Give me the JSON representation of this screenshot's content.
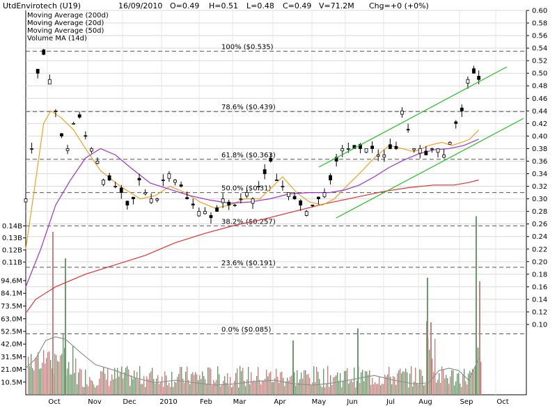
{
  "header": {
    "name": "UtdEnvirotech (U19)",
    "date": "16/09/2010",
    "open": "O=0.49",
    "high": "H=0.51",
    "low": "L=0.48",
    "close": "C=0.49",
    "volume": "V=71.2M",
    "change": "Chg=+0 (+0%)"
  },
  "legend": [
    {
      "label": "Moving Average (200d)",
      "color": "#e03030"
    },
    {
      "label": "Moving Average (20d)",
      "color": "#f0a020"
    },
    {
      "label": "Moving Average (50d)",
      "color": "#9b30d0"
    },
    {
      "label": "Volume MA (14d)",
      "color": "#808080"
    }
  ],
  "chart_data": {
    "type": "line",
    "subtype": "candlestick-with-volume",
    "price_axis": {
      "side": "right",
      "ylim": [
        0.09,
        0.6
      ],
      "ticks": [
        "0.60",
        "0.58",
        "0.56",
        "0.54",
        "0.52",
        "0.50",
        "0.48",
        "0.46",
        "0.44",
        "0.42",
        "0.40",
        "0.38",
        "0.36",
        "0.34",
        "0.32",
        "0.30",
        "0.28",
        "0.26",
        "0.24",
        "0.22",
        "0.20",
        "0.18",
        "0.16",
        "0.14",
        "0.12",
        "0.10"
      ]
    },
    "volume_axis": {
      "side": "left",
      "ylim": [
        0,
        150000000
      ],
      "ticks": [
        {
          "label": "0.14B",
          "value": 140000000
        },
        {
          "label": "0.13B",
          "value": 130000000
        },
        {
          "label": "0.12B",
          "value": 120000000
        },
        {
          "label": "0.11B",
          "value": 110000000
        },
        {
          "label": "94.6M",
          "value": 94600000
        },
        {
          "label": "84.1M",
          "value": 84100000
        },
        {
          "label": "73.5M",
          "value": 73500000
        },
        {
          "label": "63.0M",
          "value": 63000000
        },
        {
          "label": "52.5M",
          "value": 52500000
        },
        {
          "label": "42.0M",
          "value": 42000000
        },
        {
          "label": "31.5M",
          "value": 31500000
        },
        {
          "label": "21.0M",
          "value": 21000000
        },
        {
          "label": "10.5M",
          "value": 10500000
        }
      ]
    },
    "x_labels": [
      "Oct",
      "Nov",
      "Dec",
      "2010",
      "Feb",
      "Mar",
      "Apr",
      "May",
      "Jun",
      "Jul",
      "Aug",
      "Sep",
      "Oct"
    ],
    "fib_levels": [
      {
        "label": "100%   ($0.535)",
        "value": 0.535
      },
      {
        "label": "78.6%   ($0.439)",
        "value": 0.439
      },
      {
        "label": "61.8%   ($0.363)",
        "value": 0.363
      },
      {
        "label": "50.0%   ($0.31)",
        "value": 0.31
      },
      {
        "label": "38.2%   ($0.257)",
        "value": 0.257
      },
      {
        "label": "23.6%   ($0.191)",
        "value": 0.191
      },
      {
        "label": "0.0%   ($0.085)",
        "value": 0.085
      }
    ],
    "series": [
      {
        "name": "Moving Average (200d)",
        "color": "#e03030",
        "points": [
          [
            0,
            0.118
          ],
          [
            10,
            0.14
          ],
          [
            30,
            0.16
          ],
          [
            60,
            0.18
          ],
          [
            90,
            0.195
          ],
          [
            120,
            0.21
          ],
          [
            150,
            0.23
          ],
          [
            180,
            0.245
          ],
          [
            210,
            0.258
          ],
          [
            240,
            0.268
          ],
          [
            270,
            0.28
          ],
          [
            300,
            0.292
          ],
          [
            330,
            0.302
          ],
          [
            360,
            0.312
          ],
          [
            385,
            0.318
          ],
          [
            410,
            0.322
          ],
          [
            430,
            0.322
          ],
          [
            445,
            0.326
          ],
          [
            455,
            0.33
          ]
        ]
      },
      {
        "name": "Moving Average (20d)",
        "color": "#f0a020",
        "points": [
          [
            0,
            0.22
          ],
          [
            10,
            0.33
          ],
          [
            18,
            0.42
          ],
          [
            25,
            0.44
          ],
          [
            35,
            0.43
          ],
          [
            48,
            0.41
          ],
          [
            60,
            0.38
          ],
          [
            75,
            0.345
          ],
          [
            95,
            0.32
          ],
          [
            115,
            0.3
          ],
          [
            130,
            0.305
          ],
          [
            145,
            0.32
          ],
          [
            160,
            0.31
          ],
          [
            175,
            0.295
          ],
          [
            190,
            0.285
          ],
          [
            205,
            0.29
          ],
          [
            220,
            0.3
          ],
          [
            235,
            0.3
          ],
          [
            245,
            0.315
          ],
          [
            258,
            0.335
          ],
          [
            272,
            0.31
          ],
          [
            285,
            0.295
          ],
          [
            298,
            0.29
          ],
          [
            310,
            0.3
          ],
          [
            322,
            0.32
          ],
          [
            335,
            0.34
          ],
          [
            350,
            0.365
          ],
          [
            365,
            0.385
          ],
          [
            378,
            0.38
          ],
          [
            390,
            0.375
          ],
          [
            405,
            0.385
          ],
          [
            418,
            0.39
          ],
          [
            428,
            0.385
          ],
          [
            438,
            0.39
          ],
          [
            446,
            0.395
          ],
          [
            455,
            0.41
          ]
        ]
      },
      {
        "name": "Moving Average (50d)",
        "color": "#9b30d0",
        "points": [
          [
            0,
            0.16
          ],
          [
            15,
            0.22
          ],
          [
            30,
            0.29
          ],
          [
            45,
            0.33
          ],
          [
            60,
            0.365
          ],
          [
            75,
            0.38
          ],
          [
            90,
            0.37
          ],
          [
            105,
            0.35
          ],
          [
            125,
            0.325
          ],
          [
            145,
            0.315
          ],
          [
            165,
            0.305
          ],
          [
            185,
            0.298
          ],
          [
            205,
            0.293
          ],
          [
            225,
            0.295
          ],
          [
            245,
            0.3
          ],
          [
            265,
            0.308
          ],
          [
            285,
            0.31
          ],
          [
            305,
            0.31
          ],
          [
            320,
            0.314
          ],
          [
            335,
            0.322
          ],
          [
            350,
            0.335
          ],
          [
            365,
            0.35
          ],
          [
            380,
            0.362
          ],
          [
            395,
            0.372
          ],
          [
            410,
            0.378
          ],
          [
            425,
            0.38
          ],
          [
            440,
            0.385
          ],
          [
            455,
            0.395
          ]
        ]
      },
      {
        "name": "Volume MA (14d)",
        "color": "#909090",
        "points": [
          [
            0,
            22
          ],
          [
            10,
            30
          ],
          [
            20,
            45
          ],
          [
            30,
            48
          ],
          [
            40,
            46
          ],
          [
            55,
            35
          ],
          [
            70,
            25
          ],
          [
            90,
            20
          ],
          [
            110,
            14
          ],
          [
            130,
            10
          ],
          [
            150,
            12
          ],
          [
            170,
            10
          ],
          [
            190,
            8
          ],
          [
            210,
            9
          ],
          [
            230,
            11
          ],
          [
            250,
            12
          ],
          [
            270,
            9
          ],
          [
            290,
            8
          ],
          [
            310,
            10
          ],
          [
            330,
            13
          ],
          [
            350,
            16
          ],
          [
            370,
            12
          ],
          [
            390,
            9
          ],
          [
            405,
            10
          ],
          [
            415,
            20
          ],
          [
            425,
            22
          ],
          [
            435,
            20
          ],
          [
            445,
            12
          ],
          [
            455,
            30
          ]
        ]
      }
    ],
    "channel_lines": [
      {
        "from": [
          0.0,
          0.0
        ],
        "to": [
          0.0,
          0.0
        ],
        "color": "#20c020"
      }
    ]
  }
}
